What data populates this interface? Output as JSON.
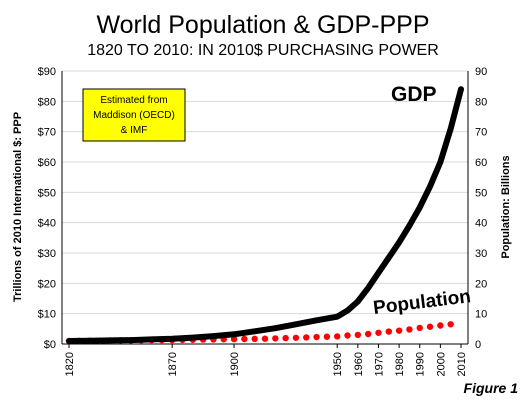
{
  "chart_data": {
    "type": "line",
    "title": "World Population & GDP-PPP",
    "subtitle": "1820 TO 2010: IN 2010$ PURCHASING POWER",
    "ylabel_left": "Trillions of 2010 International $: PPP",
    "ylabel_right": "Population: Billions",
    "x_ticks": [
      "1820",
      "1870",
      "1900",
      "1950",
      "1960",
      "1970",
      "1980",
      "1990",
      "2000",
      "2010"
    ],
    "xlim": [
      1820,
      2010
    ],
    "ylim_left": [
      0,
      90
    ],
    "ylim_right": [
      0,
      90
    ],
    "y_ticks_left": [
      "$0",
      "$10",
      "$20",
      "$30",
      "$40",
      "$50",
      "$60",
      "$70",
      "$80",
      "$90"
    ],
    "y_ticks_right": [
      "0",
      "10",
      "20",
      "30",
      "40",
      "50",
      "60",
      "70",
      "80",
      "90"
    ],
    "grid": "horizontal",
    "series": [
      {
        "name": "GDP",
        "axis": "left",
        "style": "solid",
        "color": "#000000",
        "x": [
          1820,
          1830,
          1840,
          1850,
          1860,
          1870,
          1880,
          1890,
          1900,
          1910,
          1920,
          1930,
          1940,
          1950,
          1955,
          1960,
          1965,
          1970,
          1975,
          1980,
          1985,
          1990,
          1995,
          2000,
          2005,
          2010
        ],
        "y": [
          1.0,
          1.1,
          1.2,
          1.3,
          1.5,
          1.7,
          2.1,
          2.6,
          3.2,
          4.2,
          5.2,
          6.5,
          7.8,
          9.0,
          11.0,
          14.0,
          18.5,
          23.5,
          28.5,
          33.5,
          39.0,
          45.0,
          52.0,
          60.0,
          71.0,
          84.0
        ]
      },
      {
        "name": "Population",
        "axis": "right",
        "style": "dotted",
        "color": "#ff0000",
        "x": [
          1820,
          1825,
          1830,
          1835,
          1840,
          1845,
          1850,
          1855,
          1860,
          1865,
          1870,
          1875,
          1880,
          1885,
          1890,
          1895,
          1900,
          1905,
          1910,
          1915,
          1920,
          1925,
          1930,
          1935,
          1940,
          1945,
          1950,
          1955,
          1960,
          1965,
          1970,
          1975,
          1980,
          1985,
          1990,
          1995,
          2000,
          2005
        ],
        "y": [
          1.0,
          1.05,
          1.1,
          1.1,
          1.15,
          1.2,
          1.2,
          1.25,
          1.3,
          1.3,
          1.3,
          1.35,
          1.4,
          1.45,
          1.5,
          1.55,
          1.6,
          1.65,
          1.7,
          1.75,
          1.85,
          1.95,
          2.05,
          2.15,
          2.3,
          2.4,
          2.5,
          2.8,
          3.0,
          3.3,
          3.7,
          4.1,
          4.4,
          4.8,
          5.3,
          5.7,
          6.1,
          6.5
        ]
      }
    ],
    "annotations": {
      "gdp_label": "GDP",
      "population_label": "Population",
      "source_box": [
        "Estimated from",
        "Maddison (OECD)",
        "& IMF"
      ],
      "figure_label": "Figure 1"
    },
    "colors": {
      "source_box_fill": "#ffff00",
      "grid": "#d9d9d9"
    }
  }
}
